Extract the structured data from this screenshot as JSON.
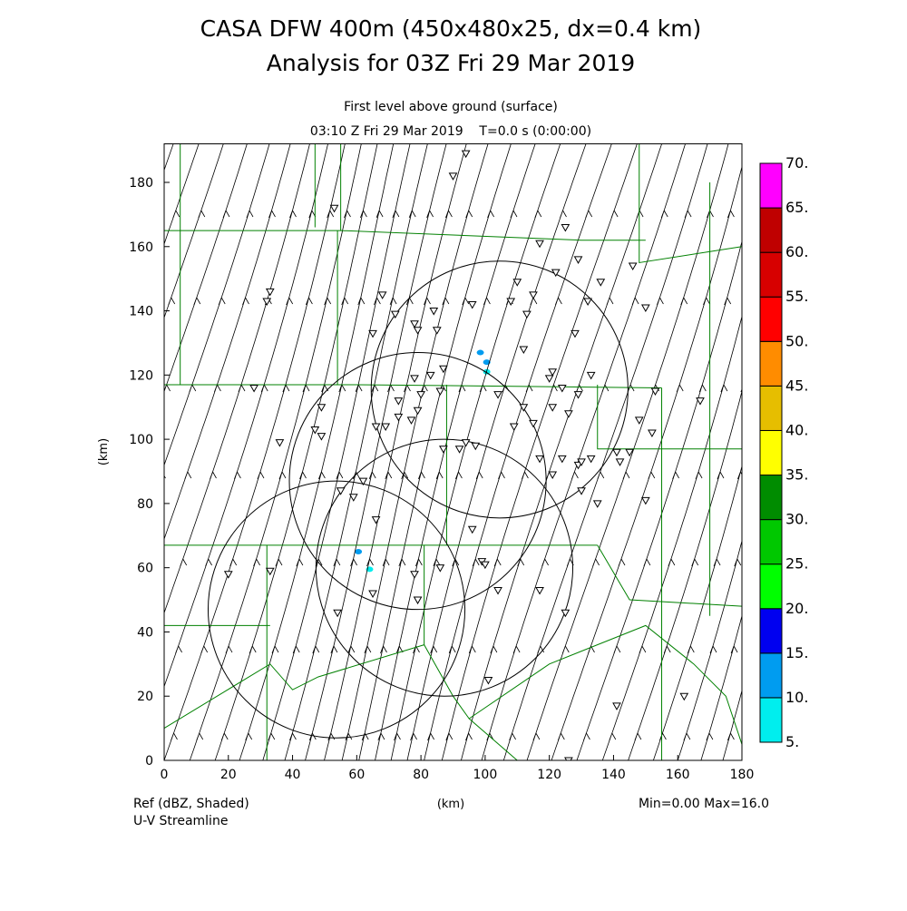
{
  "chart_data": {
    "type": "heatmap",
    "title": "CASA DFW 400m (450x480x25, dx=0.4 km)",
    "subtitle": "Analysis for 03Z Fri 29 Mar 2019",
    "level_label": "First level above ground (surface)",
    "time_label": "03:10 Z Fri 29 Mar 2019    T=0.0 s (0:00:00)",
    "xlabel": "(km)",
    "ylabel": "(km)",
    "xlim": [
      0,
      180
    ],
    "ylim": [
      0,
      192
    ],
    "xticks": [
      0,
      20,
      40,
      60,
      80,
      100,
      120,
      140,
      160,
      180
    ],
    "yticks": [
      0,
      20,
      40,
      60,
      80,
      100,
      120,
      140,
      160,
      180
    ],
    "field_label": "Ref (dBZ, Shaded)",
    "overlay_label": "U-V Streamline",
    "minmax_label": "Min=0.00 Max=16.0",
    "colorbar": {
      "levels": [
        "5.",
        "10.",
        "15.",
        "20.",
        "25.",
        "30.",
        "35.",
        "40.",
        "45.",
        "50.",
        "55.",
        "60.",
        "65.",
        "70."
      ],
      "colors": [
        "#00eeee",
        "#009cf0",
        "#0000f0",
        "#00ff00",
        "#00c800",
        "#008c00",
        "#ffff00",
        "#e6be00",
        "#ff8c00",
        "#ff0000",
        "#d70000",
        "#bf0000",
        "#ff00ff"
      ]
    },
    "radar_rings": [
      {
        "x": 104.5,
        "y": 115.5,
        "r": 40
      },
      {
        "x": 79,
        "y": 87,
        "r": 40
      },
      {
        "x": 87.3,
        "y": 60,
        "r": 40
      },
      {
        "x": 53.7,
        "y": 47,
        "r": 40
      }
    ],
    "echoes": [
      {
        "x": 98.5,
        "y": 127,
        "dbz": 12
      },
      {
        "x": 100.5,
        "y": 124,
        "dbz": 10
      },
      {
        "x": 100.5,
        "y": 121,
        "dbz": 8
      },
      {
        "x": 60.5,
        "y": 65,
        "dbz": 10
      },
      {
        "x": 64,
        "y": 59.5,
        "dbz": 6
      }
    ],
    "stations": [
      [
        53,
        172
      ],
      [
        90,
        182
      ],
      [
        94,
        189
      ],
      [
        33,
        146
      ],
      [
        32,
        143
      ],
      [
        68,
        145
      ],
      [
        65,
        133
      ],
      [
        72,
        139
      ],
      [
        78,
        136
      ],
      [
        79,
        134
      ],
      [
        84,
        140
      ],
      [
        85,
        134
      ],
      [
        96,
        142
      ],
      [
        108,
        143
      ],
      [
        110,
        149
      ],
      [
        113,
        139
      ],
      [
        115,
        145
      ],
      [
        122,
        152
      ],
      [
        117,
        161
      ],
      [
        125,
        166
      ],
      [
        129,
        156
      ],
      [
        132,
        143
      ],
      [
        136,
        149
      ],
      [
        128,
        133
      ],
      [
        112,
        128
      ],
      [
        121,
        121
      ],
      [
        120,
        119
      ],
      [
        133,
        120
      ],
      [
        124,
        116
      ],
      [
        129,
        114
      ],
      [
        126,
        108
      ],
      [
        121,
        110
      ],
      [
        112,
        110
      ],
      [
        104,
        114
      ],
      [
        86,
        115
      ],
      [
        83,
        120
      ],
      [
        78,
        119
      ],
      [
        80,
        114
      ],
      [
        73,
        112
      ],
      [
        77,
        106
      ],
      [
        79,
        109
      ],
      [
        69,
        104
      ],
      [
        66,
        104
      ],
      [
        73,
        107
      ],
      [
        87,
        97
      ],
      [
        92,
        97
      ],
      [
        94,
        99
      ],
      [
        97,
        98
      ],
      [
        109,
        104
      ],
      [
        115,
        105
      ],
      [
        117,
        94
      ],
      [
        121,
        89
      ],
      [
        124,
        94
      ],
      [
        129,
        92
      ],
      [
        130,
        93
      ],
      [
        130,
        84
      ],
      [
        133,
        94
      ],
      [
        135,
        80
      ],
      [
        141,
        96
      ],
      [
        145,
        96
      ],
      [
        142,
        93
      ],
      [
        148,
        106
      ],
      [
        150,
        81
      ],
      [
        152,
        102
      ],
      [
        153,
        115
      ],
      [
        167,
        112
      ],
      [
        146,
        154
      ],
      [
        150,
        141
      ],
      [
        87,
        122
      ],
      [
        62,
        87
      ],
      [
        66,
        75
      ],
      [
        55,
        84
      ],
      [
        59,
        82
      ],
      [
        47,
        103
      ],
      [
        49,
        110
      ],
      [
        28,
        116
      ],
      [
        36,
        99
      ],
      [
        33,
        59
      ],
      [
        20,
        58
      ],
      [
        65,
        52
      ],
      [
        79,
        50
      ],
      [
        78,
        58
      ],
      [
        86,
        60
      ],
      [
        96,
        72
      ],
      [
        99,
        62
      ],
      [
        100,
        61
      ],
      [
        104,
        53
      ],
      [
        101,
        25
      ],
      [
        117,
        53
      ],
      [
        125,
        46
      ],
      [
        141,
        17
      ],
      [
        162,
        20
      ],
      [
        126,
        0
      ],
      [
        54,
        46
      ],
      [
        49,
        101
      ]
    ],
    "boundaries": [
      [
        [
          5,
          192
        ],
        [
          5,
          117
        ],
        [
          0,
          117
        ]
      ],
      [
        [
          0,
          165
        ],
        [
          55,
          165
        ],
        [
          55,
          192
        ]
      ],
      [
        [
          47,
          192
        ],
        [
          47,
          166
        ]
      ],
      [
        [
          55,
          165
        ],
        [
          130,
          162
        ],
        [
          150,
          162
        ]
      ],
      [
        [
          0,
          117
        ],
        [
          60,
          117
        ],
        [
          155,
          116
        ]
      ],
      [
        [
          54,
          165
        ],
        [
          54,
          117
        ]
      ],
      [
        [
          0,
          67
        ],
        [
          135,
          67
        ]
      ],
      [
        [
          88,
          117
        ],
        [
          88,
          67
        ]
      ],
      [
        [
          32,
          67
        ],
        [
          32,
          0
        ]
      ],
      [
        [
          135,
          117
        ],
        [
          135,
          97
        ],
        [
          180,
          97
        ]
      ],
      [
        [
          155,
          116
        ],
        [
          155,
          0
        ]
      ],
      [
        [
          148,
          192
        ],
        [
          148,
          155
        ],
        [
          180,
          160
        ]
      ],
      [
        [
          0,
          42
        ],
        [
          33,
          42
        ]
      ],
      [
        [
          0,
          10
        ],
        [
          33,
          30
        ],
        [
          40,
          22
        ],
        [
          48,
          26
        ],
        [
          81,
          36
        ],
        [
          90,
          20
        ],
        [
          95,
          13
        ],
        [
          120,
          30
        ],
        [
          150,
          42
        ],
        [
          165,
          30
        ],
        [
          175,
          20
        ],
        [
          180,
          5
        ]
      ],
      [
        [
          81,
          36
        ],
        [
          81,
          67
        ]
      ],
      [
        [
          135,
          67
        ],
        [
          145,
          50
        ],
        [
          180,
          48
        ]
      ],
      [
        [
          170,
          180
        ],
        [
          170,
          45
        ]
      ],
      [
        [
          95,
          13
        ],
        [
          110,
          0
        ]
      ]
    ]
  }
}
